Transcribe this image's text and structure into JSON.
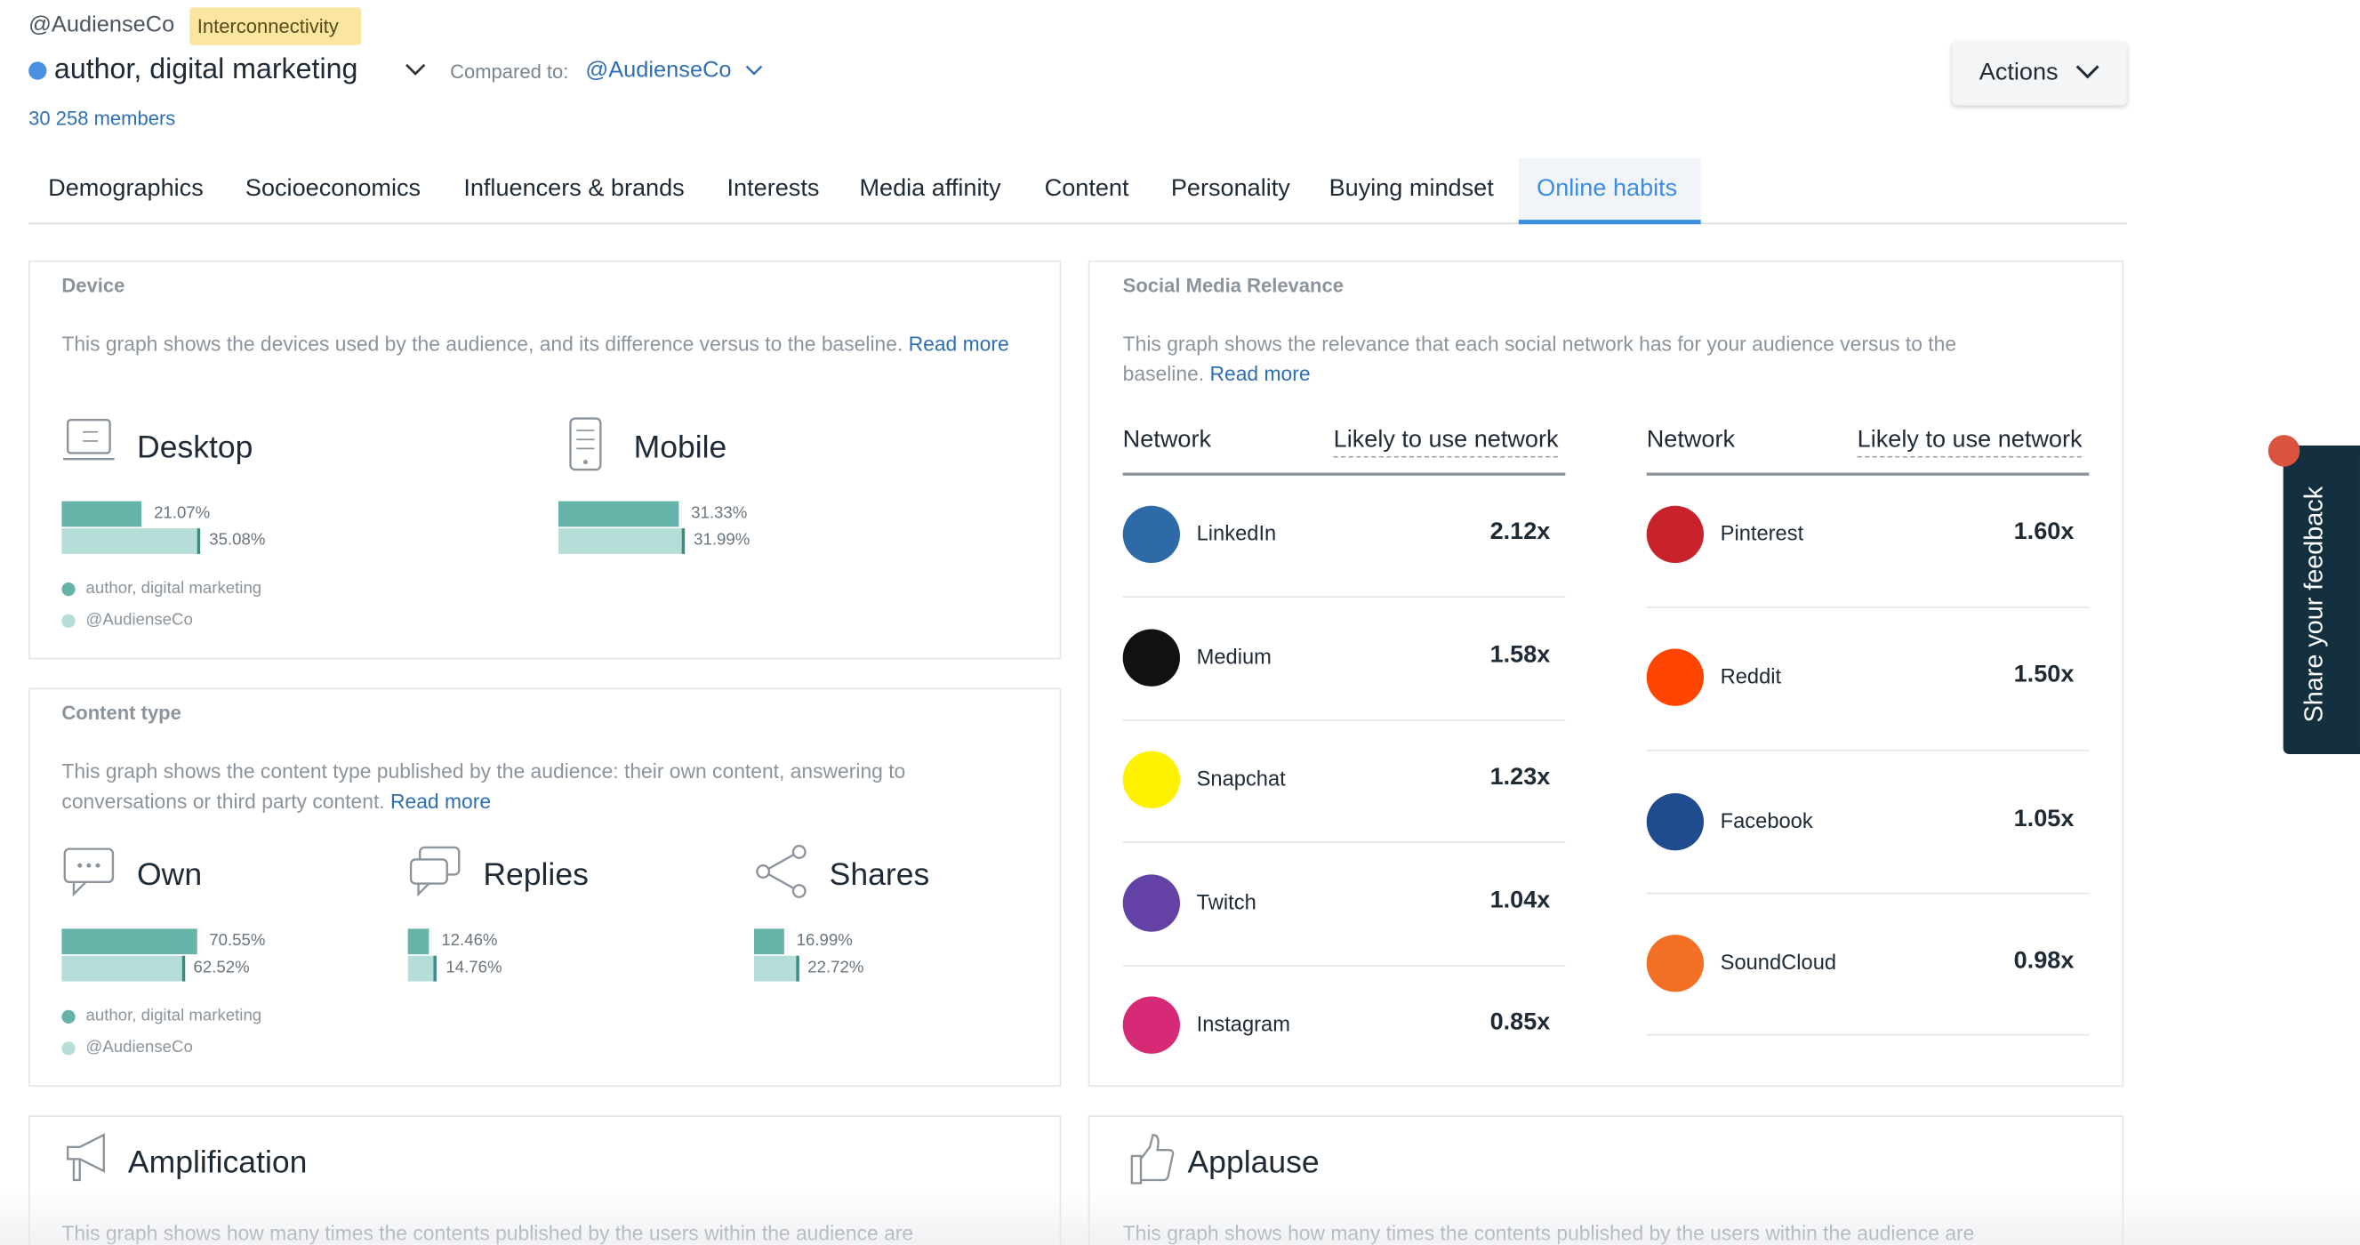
{
  "header": {
    "account": "@AudienseCo",
    "badge": "Interconnectivity",
    "audience": "author, digital marketing",
    "compared_label": "Compared to:",
    "compared": "@AudienseCo",
    "members": "30 258 members",
    "actions": "Actions"
  },
  "tabs": [
    "Demographics",
    "Socioeconomics",
    "Influencers & brands",
    "Interests",
    "Media affinity",
    "Content",
    "Personality",
    "Buying mindset",
    "Online habits"
  ],
  "device": {
    "title": "Device",
    "description": "This graph shows the devices used by the audience, and its difference versus to the baseline.",
    "read_more": "Read more",
    "items": [
      {
        "label": "Desktop",
        "bars": [
          {
            "value": 21.07,
            "label": "21.07%"
          },
          {
            "value": 35.08,
            "label": "35.08%"
          }
        ]
      },
      {
        "label": "Mobile",
        "bars": [
          {
            "value": 31.33,
            "label": "31.33%"
          },
          {
            "value": 31.99,
            "label": "31.99%"
          }
        ]
      }
    ],
    "legend": [
      "author, digital marketing",
      "@AudienseCo"
    ]
  },
  "content_type": {
    "title": "Content type",
    "description": "This graph shows the content type published by the audience: their own content, answering to conversations or third party content.",
    "read_more": "Read more",
    "items": [
      {
        "label": "Own",
        "bars": [
          {
            "value": 70.55,
            "label": "70.55%"
          },
          {
            "value": 62.52,
            "label": "62.52%"
          }
        ]
      },
      {
        "label": "Replies",
        "bars": [
          {
            "value": 12.46,
            "label": "12.46%"
          },
          {
            "value": 14.76,
            "label": "14.76%"
          }
        ]
      },
      {
        "label": "Shares",
        "bars": [
          {
            "value": 16.99,
            "label": "16.99%"
          },
          {
            "value": 22.72,
            "label": "22.72%"
          }
        ]
      }
    ],
    "legend": [
      "author, digital marketing",
      "@AudienseCo"
    ]
  },
  "social": {
    "title": "Social Media Relevance",
    "description": "This graph shows the relevance that each social network has for your audience versus to the baseline.",
    "read_more": "Read more",
    "columns": [
      {
        "network": "Network",
        "likely": "Likely to use network",
        "rows": [
          {
            "name": "LinkedIn",
            "value": "2.12x",
            "color": "#2f6aa8"
          },
          {
            "name": "Medium",
            "value": "1.58x",
            "color": "#111111"
          },
          {
            "name": "Snapchat",
            "value": "1.23x",
            "color": "#fff200"
          },
          {
            "name": "Twitch",
            "value": "1.04x",
            "color": "#6441a5"
          },
          {
            "name": "Instagram",
            "value": "0.85x",
            "color": "#d62976"
          }
        ]
      },
      {
        "network": "Network",
        "likely": "Likely to use network",
        "rows": [
          {
            "name": "Pinterest",
            "value": "1.60x",
            "color": "#c8232c"
          },
          {
            "name": "Reddit",
            "value": "1.50x",
            "color": "#ff4500"
          },
          {
            "name": "Facebook",
            "value": "1.05x",
            "color": "#1f4b8f"
          },
          {
            "name": "SoundCloud",
            "value": "0.98x",
            "color": "#f26f23"
          }
        ]
      }
    ]
  },
  "amplification": {
    "title": "Amplification",
    "description": "This graph shows how many times the contents published by the users within the audience are"
  },
  "applause": {
    "title": "Applause",
    "description": "This graph shows how many times the contents published by the users within the audience are"
  },
  "feedback": "Share your feedback"
}
